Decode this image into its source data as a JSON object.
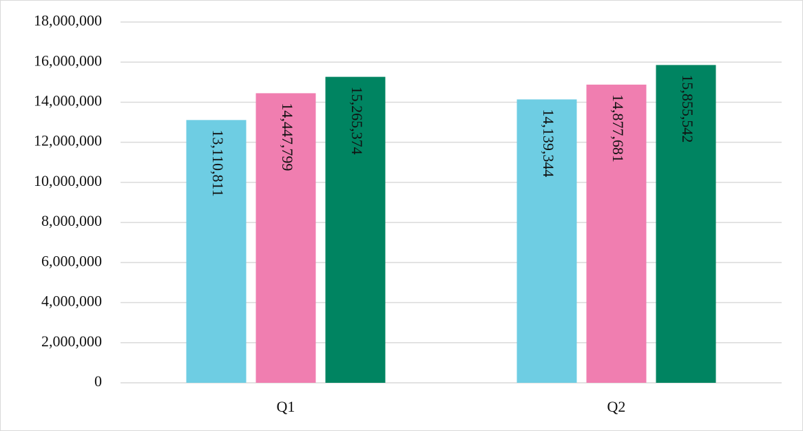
{
  "chart_data": {
    "type": "bar",
    "categories": [
      "Q1",
      "Q2"
    ],
    "series": [
      {
        "color": "#6ecde3",
        "values": [
          13110811,
          14139344
        ],
        "value_labels": [
          "13,110,811",
          "14,139,344"
        ]
      },
      {
        "color": "#f07eb0",
        "values": [
          14447799,
          14877681
        ],
        "value_labels": [
          "14,447,799",
          "14,877,681"
        ]
      },
      {
        "color": "#008461",
        "values": [
          15265374,
          15855542
        ],
        "value_labels": [
          "15,265,374",
          "15,855,542"
        ]
      }
    ],
    "ylim": [
      0,
      18000000
    ],
    "yticks": [
      0,
      {
        "value": 2000000,
        "label": "2,000,000"
      },
      {
        "value": 4000000,
        "label": "4,000,000"
      },
      {
        "value": 6000000,
        "label": "6,000,000"
      },
      {
        "value": 8000000,
        "label": "8,000,000"
      },
      {
        "value": 10000000,
        "label": "10,000,000"
      },
      {
        "value": 12000000,
        "label": "12,000,000"
      },
      {
        "value": 14000000,
        "label": "14,000,000"
      },
      {
        "value": 16000000,
        "label": "16,000,000"
      },
      {
        "value": 18000000,
        "label": "18,000,000"
      }
    ],
    "grid": true
  }
}
